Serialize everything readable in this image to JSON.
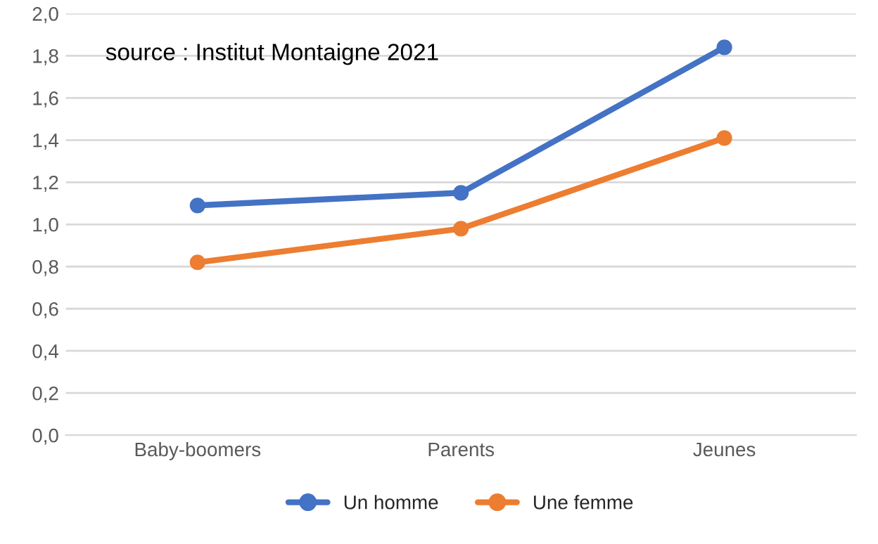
{
  "chart_data": {
    "type": "line",
    "categories": [
      "Baby-boomers",
      "Parents",
      "Jeunes"
    ],
    "series": [
      {
        "name": "Un homme",
        "color": "#4472c4",
        "values": [
          1.09,
          1.15,
          1.84
        ]
      },
      {
        "name": "Une femme",
        "color": "#ed7d31",
        "values": [
          0.82,
          0.98,
          1.41
        ]
      }
    ],
    "ylim": [
      0,
      2
    ],
    "yticks": [
      {
        "value": 0,
        "label": "0,0"
      },
      {
        "value": 0.2,
        "label": "0,2"
      },
      {
        "value": 0.4,
        "label": "0,4"
      },
      {
        "value": 0.6,
        "label": "0,6"
      },
      {
        "value": 0.8,
        "label": "0,8"
      },
      {
        "value": 1.0,
        "label": "1,0"
      },
      {
        "value": 1.2,
        "label": "1,2"
      },
      {
        "value": 1.4,
        "label": "1,4"
      },
      {
        "value": 1.6,
        "label": "1,6"
      },
      {
        "value": 1.8,
        "label": "1,8"
      },
      {
        "value": 2.0,
        "label": "2,0"
      }
    ],
    "annotations": [
      "source : Institut Montaigne 2021"
    ],
    "grid": "y",
    "legend": "bottom",
    "marker": "circle",
    "line_style": "solid"
  }
}
